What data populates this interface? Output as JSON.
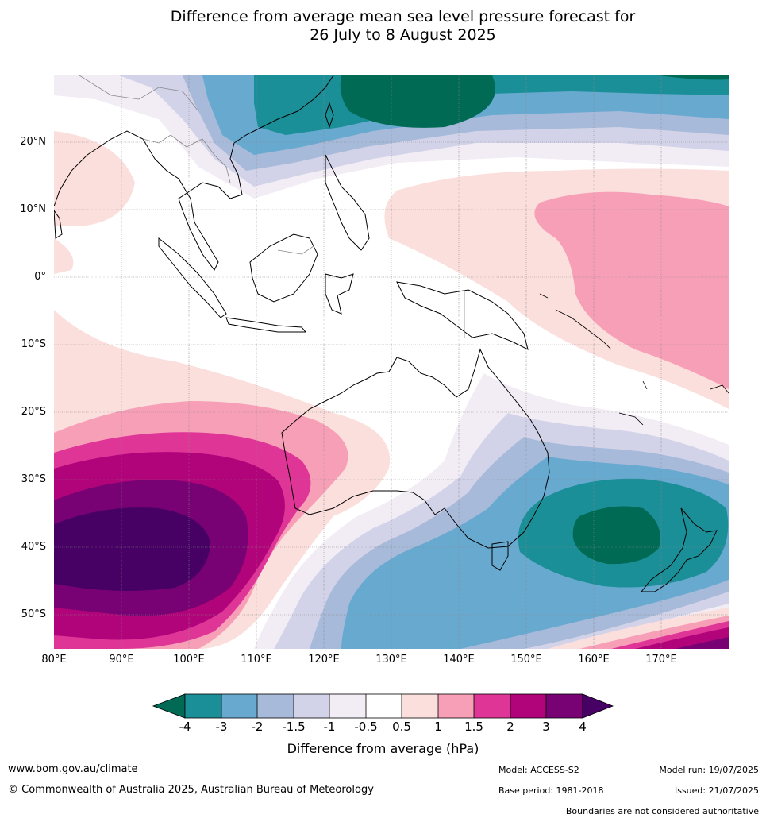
{
  "title_line1": "Difference from average mean sea level pressure forecast for",
  "title_line2": "26 July to 8 August 2025",
  "lat_labels": [
    "20°N",
    "10°N",
    "0°",
    "10°S",
    "20°S",
    "30°S",
    "40°S",
    "50°S"
  ],
  "lon_labels": [
    "80°E",
    "90°E",
    "100°E",
    "110°E",
    "120°E",
    "130°E",
    "140°E",
    "150°E",
    "160°E",
    "170°E"
  ],
  "colorbar": {
    "ticks": [
      "-4",
      "-3",
      "-2",
      "-1.5",
      "-1",
      "-0.5",
      "0.5",
      "1",
      "1.5",
      "2",
      "3",
      "4"
    ],
    "colors": [
      "#006a55",
      "#1b8f97",
      "#68a9d0",
      "#a7bad9",
      "#d2d3e8",
      "#f2ecf5",
      "#ffffff",
      "#fbdfdd",
      "#f89fb8",
      "#de3597",
      "#b1037a",
      "#780274",
      "#470164"
    ],
    "label": "Difference from average (hPa)"
  },
  "footer": {
    "website": "www.bom.gov.au/climate",
    "copyright": "© Commonwealth of Australia 2025, Australian Bureau of Meteorology",
    "model": "Model: ACCESS-S2",
    "base_period": "Base period: 1981-2018",
    "model_run": "Model run: 19/07/2025",
    "issued": "Issued: 21/07/2025",
    "disclaimer": "Boundaries are not considered authoritative"
  }
}
